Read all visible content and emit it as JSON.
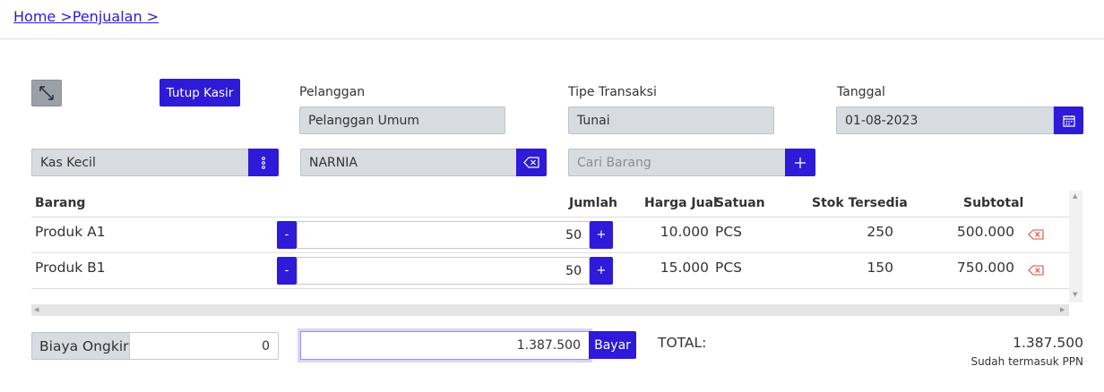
{
  "breadcrumb": {
    "home": "Home >",
    "penjualan": "Penjualan >"
  },
  "toolbar": {
    "expand_icon": "expand-icon",
    "tutup_kasir": "Tutup Kasir"
  },
  "form": {
    "pelanggan_label": "Pelanggan",
    "pelanggan_value": "Pelanggan Umum",
    "tipe_label": "Tipe Transaksi",
    "tipe_value": "Tunai",
    "tanggal_label": "Tanggal",
    "tanggal_value": "01-08-2023",
    "kas_value": "Kas Kecil",
    "sales_value": "NARNIA",
    "cari_placeholder": "Cari Barang"
  },
  "table": {
    "headers": {
      "barang": "Barang",
      "jumlah": "Jumlah",
      "harga": "Harga Jual",
      "satuan": "Satuan",
      "stok": "Stok Tersedia",
      "subtotal": "Subtotal"
    },
    "rows": [
      {
        "barang": "Produk A1",
        "minus": "-",
        "jumlah": "50",
        "plus": "+",
        "harga": "10.000",
        "satuan": "PCS",
        "stok": "250",
        "subtotal": "500.000"
      },
      {
        "barang": "Produk B1",
        "minus": "-",
        "jumlah": "50",
        "plus": "+",
        "harga": "15.000",
        "satuan": "PCS",
        "stok": "150",
        "subtotal": "750.000"
      }
    ]
  },
  "footer": {
    "biaya_label": "Biaya Ongkir",
    "biaya_value": "0",
    "bayar_value": "1.387.500",
    "bayar_button": "Bayar",
    "total_label": "TOTAL:",
    "total_value": "1.387.500",
    "total_note": "Sudah termasuk PPN"
  },
  "colors": {
    "primary": "#2e1ad8",
    "disabled_field": "#d8dbe0",
    "danger": "#e0483e",
    "link": "#2b1bd6"
  }
}
